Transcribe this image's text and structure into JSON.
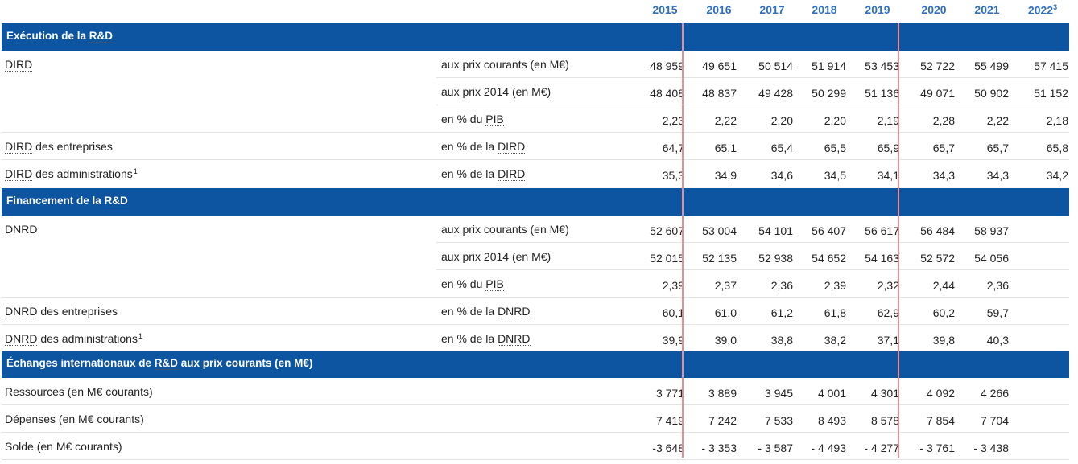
{
  "years": [
    "2015",
    "2016",
    "2017",
    "2018",
    "2019",
    "2020",
    "2021",
    "2022"
  ],
  "year_note": "3",
  "sections": [
    {
      "title": "Exécution de la R&D",
      "rows": [
        {
          "label": "DIRD",
          "abbr": true,
          "unit": "aux prix courants (en M€)",
          "values": [
            "48 959",
            "49 651",
            "50 514",
            "51 914",
            "53 453",
            "52 722",
            "55 499",
            "57 415"
          ]
        },
        {
          "label": "",
          "unit": "aux prix 2014 (en M€)",
          "values": [
            "48 408",
            "48 837",
            "49 428",
            "50 299",
            "51 136",
            "49 071",
            "50 902",
            "51 152"
          ]
        },
        {
          "label": "",
          "unit": "en % du PIB",
          "values": [
            "2,23",
            "2,22",
            "2,20",
            "2,20",
            "2,19",
            "2,28",
            "2,22",
            "2,18"
          ]
        },
        {
          "label": "DIRD des entreprises",
          "unit": "en % de la DIRD",
          "values": [
            "64,7",
            "65,1",
            "65,4",
            "65,5",
            "65,9",
            "65,7",
            "65,7",
            "65,8"
          ]
        },
        {
          "label": "DIRD des administrations",
          "note": "1",
          "unit": "en % de la DIRD",
          "values": [
            "35,3",
            "34,9",
            "34,6",
            "34,5",
            "34,1",
            "34,3",
            "34,3",
            "34,2"
          ]
        }
      ]
    },
    {
      "title": "Financement de la R&D",
      "rows": [
        {
          "label": "DNRD",
          "unit": "aux prix courants (en M€)",
          "values": [
            "52 607",
            "53 004",
            "54 101",
            "56 407",
            "56 617",
            "56 484",
            "58 937",
            ""
          ]
        },
        {
          "label": "",
          "unit": "aux prix 2014 (en M€)",
          "values": [
            "52 015",
            "52 135",
            "52 938",
            "54 652",
            "54 163",
            "52 572",
            "54 056",
            ""
          ]
        },
        {
          "label": "",
          "unit": "en % du PIB",
          "values": [
            "2,39",
            "2,37",
            "2,36",
            "2,39",
            "2,32",
            "2,44",
            "2,36",
            ""
          ]
        },
        {
          "label": "DNRD des entreprises",
          "unit": "en % de la DNRD",
          "values": [
            "60,1",
            "61,0",
            "61,2",
            "61,8",
            "62,9",
            "60,2",
            "59,7",
            ""
          ]
        },
        {
          "label": "DNRD des administrations",
          "note": "1",
          "unit": "en % de la DNRD",
          "values": [
            "39,9",
            "39,0",
            "38,8",
            "38,2",
            "37,1",
            "39,8",
            "40,3",
            ""
          ]
        }
      ]
    },
    {
      "title": "Échanges internationaux de R&D aux prix courants (en M€)",
      "rows": [
        {
          "label": "Ressources (en M€ courants)",
          "unit": "",
          "values": [
            "3 771",
            "3 889",
            "3 945",
            "4 001",
            "4 301",
            "4 092",
            "4 266",
            ""
          ]
        },
        {
          "label": "Dépenses (en M€ courants)",
          "unit": "",
          "values": [
            "7 419",
            "7 242",
            "7 533",
            "8 493",
            "8 578",
            "7 854",
            "7 704",
            ""
          ]
        },
        {
          "label": "Solde (en M€ courants)",
          "unit": "",
          "values": [
            "-3 648",
            "- 3 353",
            "- 3 587",
            "- 4 493",
            "- 4 277",
            "- 3 761",
            "- 3 438",
            ""
          ]
        }
      ]
    }
  ],
  "colors": {
    "header_blue": "#0d55a0",
    "year_blue": "#2f6fc1",
    "separator_red": "#e88d96"
  }
}
